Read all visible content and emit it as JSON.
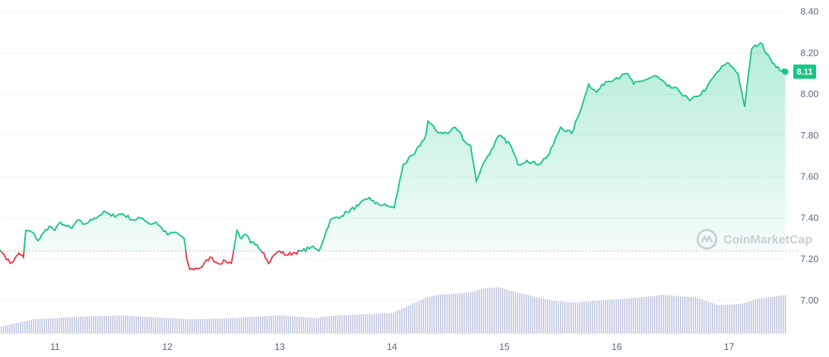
{
  "watermark": "CoinMarketCap",
  "current_price_label": "8.11",
  "colors": {
    "up": "#16c784",
    "down": "#ea3943",
    "fill_top": "#b9eccf",
    "volume": "#c9cfe3",
    "grid": "#eff2f5",
    "baseline": "#b8bcc6",
    "axis_text": "#58667e",
    "watermark": "#c9ced6"
  },
  "chart_data": {
    "type": "line",
    "x_ticks": [
      "11",
      "12",
      "13",
      "14",
      "15",
      "16",
      "17"
    ],
    "y_ticks": [
      "7.00",
      "7.20",
      "7.40",
      "7.60",
      "7.80",
      "8.00",
      "8.20",
      "8.40"
    ],
    "ylim": [
      6.84,
      8.43
    ],
    "xlim": [
      10.5,
      17.55
    ],
    "baseline_value": 7.24,
    "grid": true,
    "series": [
      {
        "values": [
          [
            10.5,
            7.25
          ],
          [
            10.55,
            7.22
          ],
          [
            10.6,
            7.18
          ],
          [
            10.64,
            7.2
          ],
          [
            10.68,
            7.23
          ],
          [
            10.72,
            7.21
          ],
          [
            10.74,
            7.34
          ],
          [
            10.8,
            7.33
          ],
          [
            10.85,
            7.29
          ],
          [
            10.9,
            7.33
          ],
          [
            10.95,
            7.36
          ],
          [
            11.0,
            7.34
          ],
          [
            11.05,
            7.38
          ],
          [
            11.1,
            7.36
          ],
          [
            11.15,
            7.35
          ],
          [
            11.2,
            7.39
          ],
          [
            11.25,
            7.37
          ],
          [
            11.3,
            7.38
          ],
          [
            11.35,
            7.4
          ],
          [
            11.45,
            7.43
          ],
          [
            11.5,
            7.41
          ],
          [
            11.6,
            7.42
          ],
          [
            11.7,
            7.39
          ],
          [
            11.78,
            7.4
          ],
          [
            11.85,
            7.37
          ],
          [
            11.9,
            7.38
          ],
          [
            12.0,
            7.32
          ],
          [
            12.08,
            7.33
          ],
          [
            12.15,
            7.3
          ],
          [
            12.17,
            7.21
          ],
          [
            12.2,
            7.15
          ],
          [
            12.3,
            7.16
          ],
          [
            12.38,
            7.21
          ],
          [
            12.45,
            7.18
          ],
          [
            12.52,
            7.19
          ],
          [
            12.57,
            7.18
          ],
          [
            12.62,
            7.34
          ],
          [
            12.66,
            7.3
          ],
          [
            12.7,
            7.32
          ],
          [
            12.74,
            7.28
          ],
          [
            12.8,
            7.27
          ],
          [
            12.86,
            7.23
          ],
          [
            12.9,
            7.18
          ],
          [
            12.95,
            7.22
          ],
          [
            13.0,
            7.24
          ],
          [
            13.06,
            7.22
          ],
          [
            13.12,
            7.23
          ],
          [
            13.2,
            7.24
          ],
          [
            13.28,
            7.26
          ],
          [
            13.35,
            7.24
          ],
          [
            13.45,
            7.39
          ],
          [
            13.55,
            7.41
          ],
          [
            13.6,
            7.43
          ],
          [
            13.7,
            7.46
          ],
          [
            13.8,
            7.5
          ],
          [
            13.85,
            7.47
          ],
          [
            13.95,
            7.46
          ],
          [
            14.02,
            7.45
          ],
          [
            14.1,
            7.66
          ],
          [
            14.2,
            7.71
          ],
          [
            14.3,
            7.8
          ],
          [
            14.32,
            7.87
          ],
          [
            14.4,
            7.82
          ],
          [
            14.5,
            7.81
          ],
          [
            14.55,
            7.84
          ],
          [
            14.6,
            7.82
          ],
          [
            14.65,
            7.77
          ],
          [
            14.7,
            7.75
          ],
          [
            14.75,
            7.58
          ],
          [
            14.8,
            7.65
          ],
          [
            14.85,
            7.7
          ],
          [
            14.9,
            7.74
          ],
          [
            14.95,
            7.8
          ],
          [
            15.05,
            7.76
          ],
          [
            15.12,
            7.66
          ],
          [
            15.2,
            7.68
          ],
          [
            15.3,
            7.66
          ],
          [
            15.4,
            7.71
          ],
          [
            15.5,
            7.84
          ],
          [
            15.6,
            7.81
          ],
          [
            15.7,
            7.96
          ],
          [
            15.75,
            8.05
          ],
          [
            15.82,
            8.01
          ],
          [
            15.9,
            8.06
          ],
          [
            16.0,
            8.08
          ],
          [
            16.1,
            8.1
          ],
          [
            16.15,
            8.05
          ],
          [
            16.25,
            8.07
          ],
          [
            16.35,
            8.09
          ],
          [
            16.45,
            8.04
          ],
          [
            16.55,
            8.02
          ],
          [
            16.65,
            7.97
          ],
          [
            16.72,
            7.99
          ],
          [
            16.8,
            8.03
          ],
          [
            16.87,
            8.09
          ],
          [
            16.95,
            8.14
          ],
          [
            17.0,
            8.15
          ],
          [
            17.08,
            8.1
          ],
          [
            17.14,
            7.94
          ],
          [
            17.2,
            8.22
          ],
          [
            17.28,
            8.25
          ],
          [
            17.35,
            8.19
          ],
          [
            17.42,
            8.13
          ],
          [
            17.5,
            8.11
          ]
        ]
      }
    ],
    "volume": [
      [
        10.5,
        0.05
      ],
      [
        10.8,
        0.11
      ],
      [
        11.2,
        0.13
      ],
      [
        11.6,
        0.14
      ],
      [
        12.0,
        0.12
      ],
      [
        12.2,
        0.11
      ],
      [
        12.6,
        0.12
      ],
      [
        12.75,
        0.13
      ],
      [
        13.0,
        0.14
      ],
      [
        13.3,
        0.12
      ],
      [
        13.5,
        0.14
      ],
      [
        13.8,
        0.15
      ],
      [
        14.0,
        0.16
      ],
      [
        14.3,
        0.28
      ],
      [
        14.4,
        0.3
      ],
      [
        14.7,
        0.32
      ],
      [
        14.8,
        0.35
      ],
      [
        14.95,
        0.36
      ],
      [
        15.1,
        0.32
      ],
      [
        15.4,
        0.26
      ],
      [
        15.6,
        0.24
      ],
      [
        15.9,
        0.26
      ],
      [
        16.2,
        0.28
      ],
      [
        16.4,
        0.3
      ],
      [
        16.7,
        0.28
      ],
      [
        16.9,
        0.22
      ],
      [
        17.1,
        0.23
      ],
      [
        17.25,
        0.27
      ],
      [
        17.5,
        0.3
      ]
    ]
  }
}
